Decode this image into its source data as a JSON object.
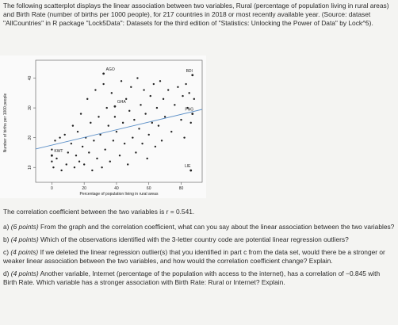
{
  "intro": "The following scatterplot displays the linear association between two variables, Rural (percentage of population living in rural areas) and Birth Rate (number of births per 1000 people), for 217 countries in 2018 or most recently available year. (Source: dataset \"AllCountries\" in R package \"Lock5Data\": Datasets for the third edition of \"Statistics: Unlocking the Power of Data\" by Lock^5).",
  "chart_data": {
    "type": "scatter",
    "xlabel": "Percentage of population living in rural areas",
    "ylabel": "Number of births per 1000 people",
    "xlim": [
      -10,
      93
    ],
    "ylim": [
      5,
      46
    ],
    "xticks": [
      0,
      20,
      40,
      60,
      80
    ],
    "yticks": [
      10,
      20,
      30,
      40
    ],
    "color": "#222222",
    "x": [
      0,
      0,
      1,
      2,
      3,
      5,
      6,
      8,
      9,
      10,
      12,
      13,
      14,
      15,
      16,
      17,
      18,
      19,
      20,
      21,
      22,
      23,
      24,
      25,
      26,
      27,
      28,
      29,
      30,
      31,
      32,
      33,
      34,
      35,
      36,
      37,
      38,
      39,
      40,
      42,
      43,
      44,
      45,
      46,
      47,
      48,
      49,
      50,
      51,
      52,
      53,
      54,
      55,
      56,
      57,
      58,
      59,
      60,
      61,
      62,
      63,
      64,
      65,
      66,
      67,
      68,
      69,
      70,
      72,
      74,
      76,
      78,
      80,
      81,
      82,
      83,
      84,
      85,
      86,
      88
    ],
    "y": [
      12,
      16,
      10,
      19,
      13,
      20,
      9,
      21,
      11,
      15,
      18,
      24,
      10,
      14,
      22,
      12,
      28,
      17,
      11,
      20,
      33,
      15,
      25,
      9,
      19,
      36,
      13,
      27,
      21,
      10,
      38,
      16,
      30,
      24,
      12,
      35,
      19,
      27,
      22,
      14,
      39,
      25,
      18,
      33,
      11,
      29,
      37,
      20,
      26,
      15,
      40,
      23,
      31,
      18,
      36,
      28,
      13,
      21,
      34,
      25,
      38,
      17,
      30,
      24,
      39,
      19,
      33,
      27,
      36,
      22,
      31,
      37,
      26,
      34,
      20,
      38,
      30,
      35,
      25,
      33
    ],
    "trend_line": {
      "x": [
        -10,
        93
      ],
      "y": [
        16.2,
        29.5
      ]
    },
    "labeled_points": [
      {
        "text": "AGO",
        "x": 32,
        "y": 41.5
      },
      {
        "text": "BDI",
        "x": 87,
        "y": 41
      },
      {
        "text": "GHA",
        "x": 39,
        "y": 30.5
      },
      {
        "text": "PNG",
        "x": 87,
        "y": 28
      },
      {
        "text": "LIE",
        "x": 86,
        "y": 9
      },
      {
        "text": "KWT",
        "x": 0,
        "y": 14
      }
    ]
  },
  "stem": "The correlation coefficient between the two variables is r = 0.541.",
  "questions": [
    {
      "label": "a)",
      "points": "(6 points)",
      "text": "From the graph and the correlation coefficient, what can you say about the linear association between the two variables?"
    },
    {
      "label": "b)",
      "points": "(4 points)",
      "text": "Which of the observations identified with the 3-letter country code are potential linear regression outliers?"
    },
    {
      "label": "c)",
      "points": "(4 points)",
      "text": "If we deleted the linear regression outlier(s) that you identified in part c from the data set, would there be a stronger or weaker linear association between the two variables, and how would the correlation coefficient change? Explain."
    },
    {
      "label": "d)",
      "points": "(4 points)",
      "text": "Another variable, Internet (percentage of the population with access to the internet), has a correlation of −0.845 with Birth Rate. Which variable has a stronger association with Birth Rate: Rural or Internet? Explain."
    }
  ]
}
